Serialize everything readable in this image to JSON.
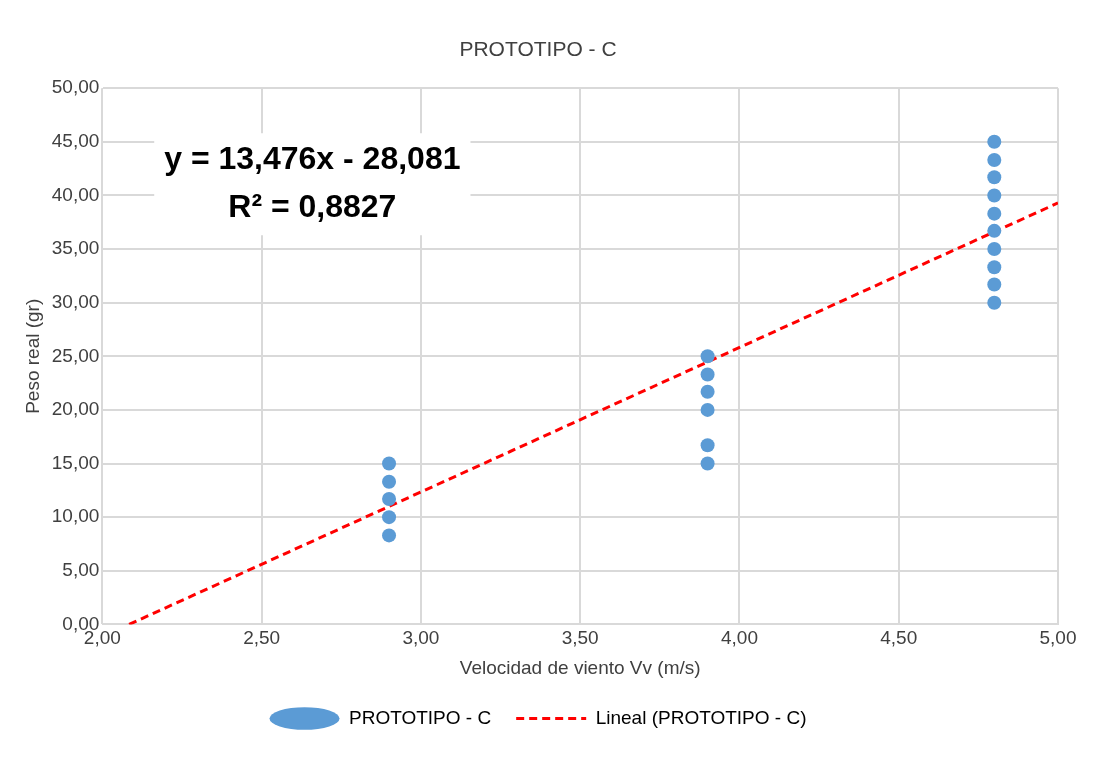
{
  "chart_data": {
    "type": "scatter",
    "title": "PROTOTIPO - C",
    "xlabel": "Velocidad de viento Vv (m/s)",
    "ylabel": "Peso real (gr)",
    "xlim": [
      2,
      5
    ],
    "ylim": [
      0,
      50
    ],
    "xticks": [
      {
        "value": 2,
        "label": "2,00"
      },
      {
        "value": 2.5,
        "label": "2,50"
      },
      {
        "value": 3,
        "label": "3,00"
      },
      {
        "value": 3.5,
        "label": "3,50"
      },
      {
        "value": 4,
        "label": "4,00"
      },
      {
        "value": 4.5,
        "label": "4,50"
      },
      {
        "value": 5,
        "label": "5,00"
      }
    ],
    "yticks": [
      {
        "value": 0,
        "label": "0,00"
      },
      {
        "value": 5,
        "label": "5,00"
      },
      {
        "value": 10,
        "label": "10,00"
      },
      {
        "value": 15,
        "label": "15,00"
      },
      {
        "value": 20,
        "label": "20,00"
      },
      {
        "value": 25,
        "label": "25,00"
      },
      {
        "value": 30,
        "label": "30,00"
      },
      {
        "value": 35,
        "label": "35,00"
      },
      {
        "value": 40,
        "label": "40,00"
      },
      {
        "value": 45,
        "label": "45,00"
      },
      {
        "value": 50,
        "label": "50,00"
      }
    ],
    "grid": true,
    "legend": "bottom",
    "series": [
      {
        "name": "PROTOTIPO - C",
        "color": "#5b9bd5",
        "marker": "circle",
        "x": [
          2.9,
          2.9,
          2.9,
          2.9,
          2.9,
          3.9,
          3.9,
          3.9,
          3.9,
          3.9,
          3.9,
          4.8,
          4.8,
          4.8,
          4.8,
          4.8,
          4.8,
          4.8,
          4.8,
          4.8,
          4.8
        ],
        "values": [
          15,
          13.3,
          11.7,
          10,
          8.3,
          25,
          23.3,
          21.7,
          20,
          16.7,
          15,
          45,
          43.3,
          41.7,
          40,
          38.3,
          36.7,
          35,
          33.3,
          31.7,
          30
        ]
      },
      {
        "name": "Lineal (PROTOTIPO - C)",
        "type": "line",
        "color": "#ff0000",
        "line_style": "dashed",
        "marker": "none",
        "x": [
          2.084,
          5
        ],
        "values": [
          0,
          39.3
        ]
      }
    ],
    "annotations": [
      "y = 13,476x - 28,081",
      "R² = 0,8827"
    ]
  }
}
